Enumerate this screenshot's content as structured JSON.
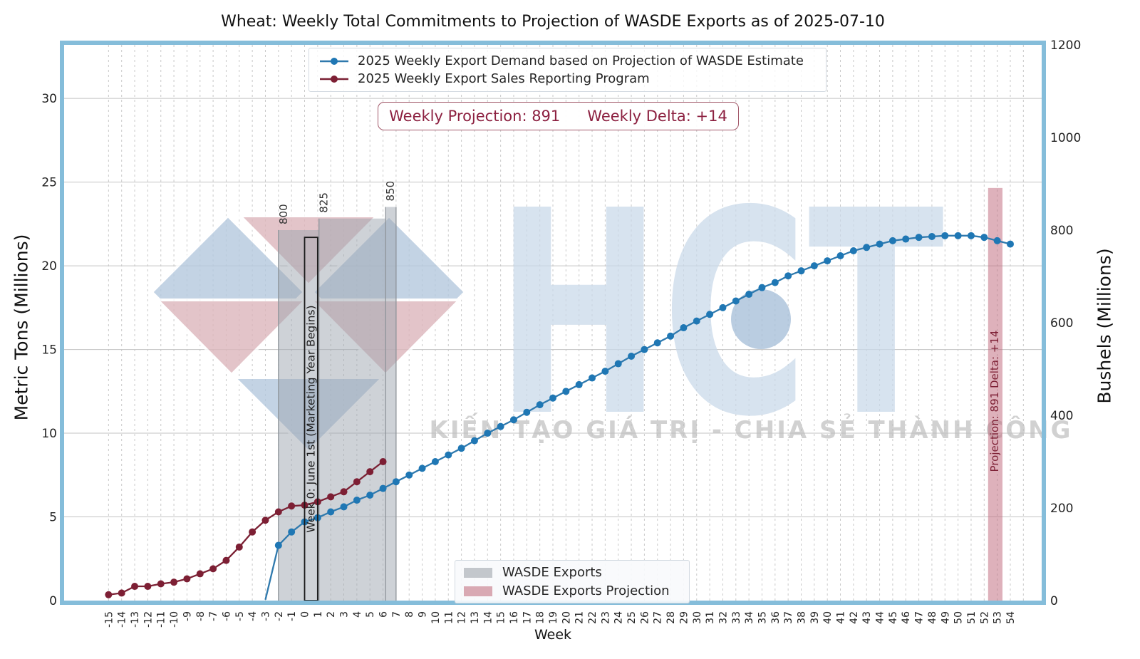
{
  "title": "Wheat: Weekly Total Commitments to Projection of WASDE Exports as of 2025-07-10",
  "axes": {
    "left_label": "Metric Tons (Millions)",
    "right_label": "Bushels (Millions)",
    "x_label": "Week"
  },
  "projection_box": {
    "projection": "Weekly Projection: 891",
    "delta": "Weekly Delta: +14"
  },
  "watermark": {
    "brand": "HCT",
    "tagline": "KIẾN TẠO GIÁ TRỊ - CHIA SẺ THÀNH CÔNG",
    "blue": "#b5c9de",
    "pink": "#ddb6bc",
    "brand_color": "#c9d8e9",
    "dot_color": "#a9c1da",
    "tagline_color": "#bdbdbd"
  },
  "chart_data": {
    "type": "line",
    "title": "Wheat: Weekly Total Commitments to Projection of WASDE Exports as of 2025-07-10",
    "xlabel": "Week",
    "ylabel_left": "Metric Tons (Millions)",
    "ylabel_right": "Bushels (Millions)",
    "xlim": [
      -18.4,
      56.4
    ],
    "ylim_left": [
      0,
      33.2
    ],
    "ylim_right": [
      0,
      1200
    ],
    "grid": true,
    "legend_position": "top-center",
    "x_ticks": [
      -15,
      -14,
      -13,
      -12,
      -11,
      -10,
      -9,
      -8,
      -7,
      -6,
      -5,
      -4,
      -3,
      -2,
      -1,
      0,
      1,
      2,
      3,
      4,
      5,
      6,
      7,
      8,
      9,
      10,
      11,
      12,
      13,
      14,
      15,
      16,
      17,
      18,
      19,
      20,
      21,
      22,
      23,
      24,
      25,
      26,
      27,
      28,
      29,
      30,
      31,
      32,
      33,
      34,
      35,
      36,
      37,
      38,
      39,
      40,
      41,
      42,
      43,
      44,
      45,
      46,
      47,
      48,
      49,
      50,
      51,
      52,
      53,
      54
    ],
    "y_ticks_left": [
      0,
      5,
      10,
      15,
      20,
      25,
      30
    ],
    "y_ticks_right": [
      0,
      200,
      400,
      600,
      800,
      1000,
      1200
    ],
    "series": [
      {
        "name": "2025 Weekly Export Demand based on Projection of WASDE Estimate",
        "color": "#1f77b4",
        "line_color": "#2f79ad",
        "x": [
          -3,
          -2,
          -1,
          0,
          1,
          2,
          3,
          4,
          5,
          6,
          7,
          8,
          9,
          10,
          11,
          12,
          13,
          14,
          15,
          16,
          17,
          18,
          19,
          20,
          21,
          22,
          23,
          24,
          25,
          26,
          27,
          28,
          29,
          30,
          31,
          32,
          33,
          34,
          35,
          36,
          37,
          38,
          39,
          40,
          41,
          42,
          43,
          44,
          45,
          46,
          47,
          48,
          49,
          50,
          51,
          52,
          53,
          54
        ],
        "y": [
          0.05,
          3.3,
          4.1,
          4.7,
          4.95,
          5.3,
          5.6,
          6.0,
          6.3,
          6.7,
          7.1,
          7.5,
          7.9,
          8.3,
          8.7,
          9.1,
          9.55,
          10.0,
          10.4,
          10.8,
          11.25,
          11.7,
          12.1,
          12.5,
          12.9,
          13.3,
          13.7,
          14.15,
          14.6,
          15.0,
          15.4,
          15.8,
          16.3,
          16.7,
          17.1,
          17.5,
          17.9,
          18.3,
          18.7,
          19.0,
          19.4,
          19.7,
          20.0,
          20.3,
          20.6,
          20.9,
          21.1,
          21.3,
          21.5,
          21.6,
          21.7,
          21.75,
          21.8,
          21.8,
          21.8,
          21.7,
          21.5,
          21.3
        ]
      },
      {
        "name": "2025 Weekly Export Sales Reporting Program",
        "color": "#7d1f34",
        "line_color": "#7a2033",
        "x": [
          -15,
          -14,
          -13,
          -12,
          -11,
          -10,
          -9,
          -8,
          -7,
          -6,
          -5,
          -4,
          -3,
          -2,
          -1,
          0,
          1,
          2,
          3,
          4,
          5,
          6
        ],
        "y": [
          0.35,
          0.45,
          0.85,
          0.85,
          1.0,
          1.1,
          1.3,
          1.6,
          1.9,
          2.4,
          3.2,
          4.1,
          4.8,
          5.3,
          5.65,
          5.7,
          5.9,
          6.2,
          6.5,
          7.1,
          7.7,
          8.3
        ]
      }
    ],
    "wasde_export_steps": [
      {
        "week_from": -2.0,
        "week_to": 1.1,
        "bushels": 800,
        "label": "800"
      },
      {
        "week_from": 1.1,
        "week_to": 6.2,
        "bushels": 825,
        "label": "825"
      },
      {
        "week_from": 6.2,
        "week_to": 7.0,
        "bushels": 850,
        "label": "850"
      }
    ],
    "projection_band": {
      "week_from": 52.3,
      "week_to": 53.4,
      "bushels": 891,
      "label": "Projection: 891   Delta: +14",
      "color": "#be6478"
    },
    "week0_box": {
      "week_from": 0,
      "week_to": 1,
      "top_metric_tons": 21.7,
      "label": "Week 0: June 1st (Marketing Year Begins)"
    },
    "area_legend": [
      {
        "label": "WASDE Exports",
        "color": "#c3c7cc"
      },
      {
        "label": "WASDE Exports Projection",
        "color": "#d9a9b3"
      }
    ],
    "colors": {
      "band_gray": "rgba(158,166,175,0.5)",
      "band_pink": "rgba(190,100,120,0.5)",
      "grid": "#c9c9c9",
      "border": "#85bdda",
      "annotation": "#1a1a1a",
      "step_edge": "#8e949a",
      "proj_text": "#7d1f34"
    }
  }
}
